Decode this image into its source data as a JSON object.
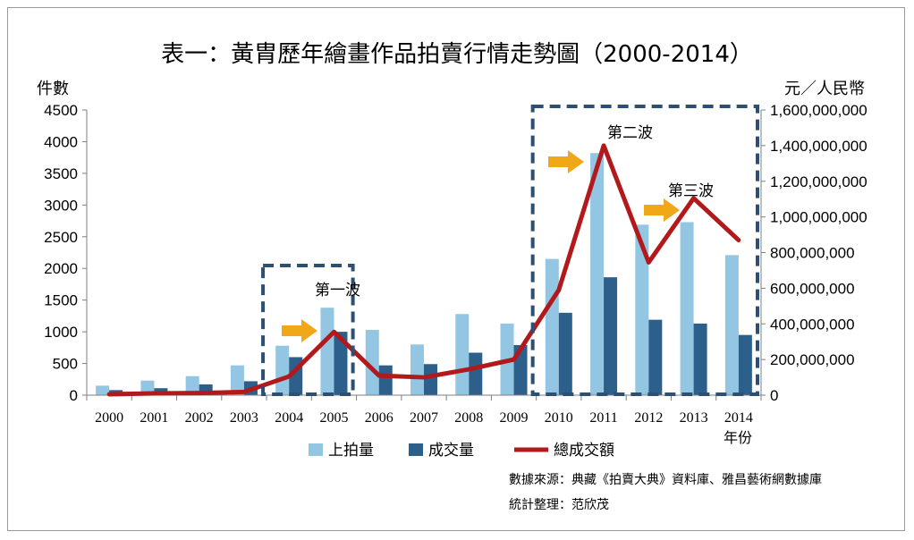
{
  "chart_data": {
    "type": "bar",
    "title": "表一：黃胄歷年繪畫作品拍賣行情走勢圖（2000-2014）",
    "xlabel": "年份",
    "ylabel": "件數",
    "y2label": "元／人民幣",
    "categories": [
      "2000",
      "2001",
      "2002",
      "2003",
      "2004",
      "2005",
      "2006",
      "2007",
      "2008",
      "2009",
      "2010",
      "2011",
      "2012",
      "2013",
      "2014"
    ],
    "ylim": [
      0,
      4500
    ],
    "yticks": [
      "0",
      "500",
      "1000",
      "1500",
      "2000",
      "2500",
      "3000",
      "3500",
      "4000",
      "4500"
    ],
    "y2lim": [
      0,
      1600000000
    ],
    "y2ticks": [
      "0",
      "200,000,000",
      "400,000,000",
      "600,000,000",
      "800,000,000",
      "1,000,000,000",
      "1,200,000,000",
      "1,400,000,000",
      "1,600,000,000"
    ],
    "series": [
      {
        "name": "上拍量",
        "kind": "bar",
        "axis": "left",
        "color": "#93c6e2",
        "values": [
          150,
          230,
          300,
          470,
          780,
          1380,
          1030,
          800,
          1280,
          1130,
          2150,
          3820,
          2690,
          2730,
          2210
        ]
      },
      {
        "name": "成交量",
        "kind": "bar",
        "axis": "left",
        "color": "#2d5f8b",
        "values": [
          80,
          110,
          170,
          220,
          600,
          1000,
          470,
          490,
          670,
          790,
          1300,
          1860,
          1190,
          1130,
          950
        ]
      },
      {
        "name": "總成交額",
        "kind": "line",
        "axis": "right",
        "color": "#b2191d",
        "values": [
          5000000,
          10000000,
          12000000,
          18000000,
          105000000,
          355000000,
          110000000,
          100000000,
          145000000,
          200000000,
          590000000,
          1400000000,
          745000000,
          1105000000,
          870000000
        ]
      }
    ],
    "annotations": [
      {
        "label": "第一波",
        "from": "2004",
        "to": "2005"
      },
      {
        "label": "第二波",
        "from": "2010",
        "to": "2014"
      },
      {
        "label": "第三波",
        "from": "2013",
        "to": "2013"
      }
    ],
    "legend": "bottom",
    "grid": false
  },
  "source": {
    "line1": "數據來源：典藏《拍賣大典》資料庫、雅昌藝術網數據庫",
    "line2": "統計整理：范欣茂"
  }
}
